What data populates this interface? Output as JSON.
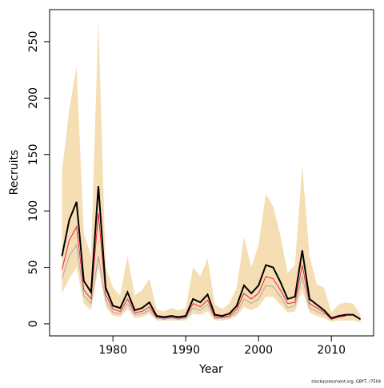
{
  "chart_data": {
    "type": "line",
    "xlabel": "Year",
    "ylabel": "Recruits",
    "footnote": "stockassessment.org, GBYT, r7504",
    "x": [
      1973,
      1974,
      1975,
      1976,
      1977,
      1978,
      1979,
      1980,
      1981,
      1982,
      1983,
      1984,
      1985,
      1986,
      1987,
      1988,
      1989,
      1990,
      1991,
      1992,
      1993,
      1994,
      1995,
      1996,
      1997,
      1998,
      1999,
      2000,
      2001,
      2002,
      2003,
      2004,
      2005,
      2006,
      2007,
      2008,
      2009,
      2010,
      2011,
      2012,
      2013,
      2014
    ],
    "xlim": [
      1971.3,
      2015.8
    ],
    "xticks": [
      1980,
      1990,
      2000,
      2010
    ],
    "ylim": [
      -10.7,
      278.4
    ],
    "yticks": [
      0,
      50,
      100,
      150,
      200,
      250
    ],
    "band": {
      "color": "#f5deb3",
      "upper": [
        135,
        190,
        228,
        80,
        60,
        270,
        50,
        32,
        25,
        60,
        25,
        30,
        40,
        13,
        11,
        14,
        12,
        14,
        50,
        42,
        58,
        17,
        13,
        18,
        32,
        77,
        50,
        70,
        115,
        104,
        78,
        45,
        52,
        140,
        60,
        35,
        32,
        10,
        17,
        19,
        18,
        8
      ],
      "lower": [
        27,
        40,
        50,
        18,
        12,
        50,
        15,
        7,
        6,
        13,
        5,
        6,
        9,
        3,
        3,
        3,
        3,
        3,
        9,
        8,
        11,
        3,
        3,
        4,
        7,
        15,
        12,
        15,
        24,
        24,
        17,
        10,
        11,
        30,
        10,
        7,
        5,
        2,
        3,
        3,
        3,
        1
      ]
    },
    "series": [
      {
        "color": "#a9a9a9",
        "width": 1,
        "values": [
          40,
          60,
          70,
          25,
          18,
          60,
          21,
          10,
          9,
          18,
          8,
          9,
          12,
          5,
          4,
          5,
          4,
          5,
          14,
          12,
          17,
          5,
          5,
          6,
          10,
          22,
          18,
          22,
          34,
          33,
          24,
          14,
          16,
          42,
          14,
          11,
          8,
          null,
          null,
          null,
          null,
          null
        ]
      },
      {
        "color": "#e8204a",
        "width": 1,
        "values": [
          48,
          74,
          86,
          30,
          22,
          98,
          26,
          13,
          11,
          22,
          10,
          11,
          15,
          6,
          5,
          6,
          5,
          6,
          18,
          15,
          21,
          6,
          6,
          7,
          13,
          27,
          22,
          27,
          42,
          40,
          30,
          18,
          19,
          52,
          18,
          14,
          10,
          4,
          6,
          7,
          null,
          null
        ]
      },
      {
        "color": "#000000",
        "width": 2,
        "values": [
          60,
          92,
          108,
          38,
          28,
          122,
          32,
          16,
          14,
          28,
          12,
          14,
          19,
          7,
          6,
          7,
          6,
          7,
          22,
          19,
          26,
          8,
          7,
          9,
          16,
          34,
          27,
          34,
          52,
          50,
          37,
          22,
          24,
          65,
          22,
          17,
          12,
          5,
          7,
          8,
          8,
          4
        ]
      }
    ]
  }
}
